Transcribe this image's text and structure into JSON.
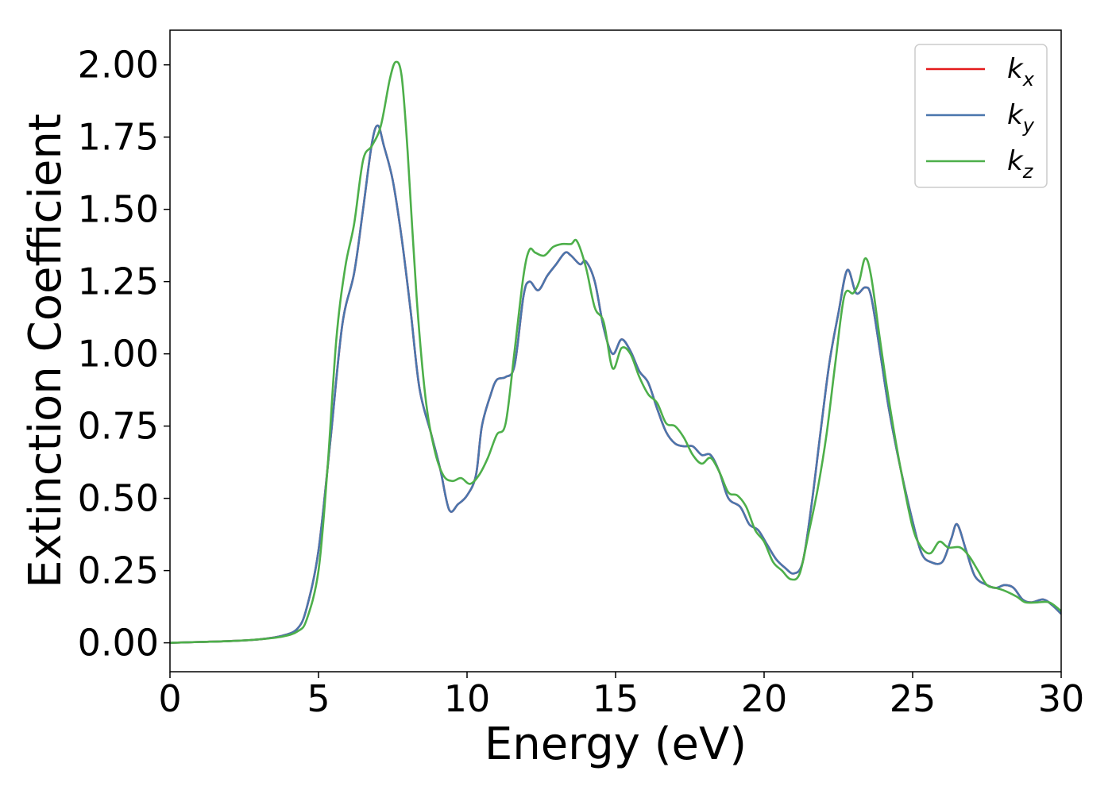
{
  "chart_data": {
    "type": "line",
    "xlabel": "Energy (eV)",
    "ylabel": "Extinction Coefficient",
    "xlim": [
      0,
      30
    ],
    "ylim": [
      -0.1,
      2.12
    ],
    "xticks": [
      "0",
      "5",
      "10",
      "15",
      "20",
      "25",
      "30"
    ],
    "yticks": [
      "0.00",
      "0.25",
      "0.50",
      "0.75",
      "1.00",
      "1.25",
      "1.50",
      "1.75",
      "2.00"
    ],
    "legend_position": "top-right",
    "grid": false,
    "series": [
      {
        "name": "k_x",
        "label_main": "k",
        "label_sub": "x",
        "color": "#e41a1c",
        "points": [
          [
            0,
            0.0
          ],
          [
            1,
            0.003
          ],
          [
            2,
            0.006
          ],
          [
            3,
            0.012
          ],
          [
            3.8,
            0.025
          ],
          [
            4.3,
            0.05
          ],
          [
            4.6,
            0.12
          ],
          [
            5,
            0.32
          ],
          [
            5.4,
            0.7
          ],
          [
            5.8,
            1.1
          ],
          [
            6.2,
            1.28
          ],
          [
            6.5,
            1.5
          ],
          [
            6.8,
            1.73
          ],
          [
            7.0,
            1.79
          ],
          [
            7.2,
            1.72
          ],
          [
            7.5,
            1.6
          ],
          [
            7.8,
            1.4
          ],
          [
            8.1,
            1.15
          ],
          [
            8.4,
            0.88
          ],
          [
            8.8,
            0.72
          ],
          [
            9.1,
            0.6
          ],
          [
            9.4,
            0.46
          ],
          [
            9.7,
            0.48
          ],
          [
            10.0,
            0.51
          ],
          [
            10.3,
            0.58
          ],
          [
            10.5,
            0.75
          ],
          [
            10.8,
            0.86
          ],
          [
            11.0,
            0.91
          ],
          [
            11.3,
            0.92
          ],
          [
            11.6,
            0.96
          ],
          [
            11.9,
            1.2
          ],
          [
            12.1,
            1.25
          ],
          [
            12.4,
            1.22
          ],
          [
            12.7,
            1.27
          ],
          [
            13.0,
            1.31
          ],
          [
            13.3,
            1.35
          ],
          [
            13.5,
            1.34
          ],
          [
            13.8,
            1.31
          ],
          [
            14.0,
            1.32
          ],
          [
            14.3,
            1.25
          ],
          [
            14.6,
            1.09
          ],
          [
            14.9,
            1.0
          ],
          [
            15.2,
            1.05
          ],
          [
            15.5,
            1.01
          ],
          [
            15.8,
            0.94
          ],
          [
            16.1,
            0.9
          ],
          [
            16.4,
            0.81
          ],
          [
            16.7,
            0.73
          ],
          [
            17.0,
            0.69
          ],
          [
            17.3,
            0.68
          ],
          [
            17.6,
            0.68
          ],
          [
            17.9,
            0.65
          ],
          [
            18.2,
            0.65
          ],
          [
            18.5,
            0.59
          ],
          [
            18.8,
            0.5
          ],
          [
            19.2,
            0.47
          ],
          [
            19.5,
            0.41
          ],
          [
            19.8,
            0.39
          ],
          [
            20.1,
            0.34
          ],
          [
            20.4,
            0.29
          ],
          [
            20.7,
            0.26
          ],
          [
            21.0,
            0.24
          ],
          [
            21.3,
            0.28
          ],
          [
            21.6,
            0.48
          ],
          [
            21.9,
            0.73
          ],
          [
            22.2,
            0.97
          ],
          [
            22.5,
            1.14
          ],
          [
            22.8,
            1.29
          ],
          [
            23.1,
            1.21
          ],
          [
            23.4,
            1.23
          ],
          [
            23.6,
            1.2
          ],
          [
            23.9,
            1.01
          ],
          [
            24.2,
            0.81
          ],
          [
            24.6,
            0.6
          ],
          [
            25.0,
            0.42
          ],
          [
            25.3,
            0.31
          ],
          [
            25.6,
            0.28
          ],
          [
            26.0,
            0.28
          ],
          [
            26.3,
            0.36
          ],
          [
            26.5,
            0.41
          ],
          [
            26.8,
            0.32
          ],
          [
            27.1,
            0.23
          ],
          [
            27.5,
            0.2
          ],
          [
            27.8,
            0.19
          ],
          [
            28.1,
            0.2
          ],
          [
            28.4,
            0.19
          ],
          [
            28.7,
            0.15
          ],
          [
            29.0,
            0.14
          ],
          [
            29.4,
            0.15
          ],
          [
            29.7,
            0.13
          ],
          [
            30.0,
            0.1
          ]
        ]
      },
      {
        "name": "k_y",
        "label_main": "k",
        "label_sub": "y",
        "color": "#4a76ad",
        "points": [
          [
            0,
            0.0
          ],
          [
            1,
            0.003
          ],
          [
            2,
            0.006
          ],
          [
            3,
            0.012
          ],
          [
            3.8,
            0.025
          ],
          [
            4.3,
            0.05
          ],
          [
            4.6,
            0.12
          ],
          [
            5,
            0.32
          ],
          [
            5.4,
            0.7
          ],
          [
            5.8,
            1.1
          ],
          [
            6.2,
            1.28
          ],
          [
            6.5,
            1.5
          ],
          [
            6.8,
            1.73
          ],
          [
            7.0,
            1.79
          ],
          [
            7.2,
            1.72
          ],
          [
            7.5,
            1.6
          ],
          [
            7.8,
            1.4
          ],
          [
            8.1,
            1.15
          ],
          [
            8.4,
            0.88
          ],
          [
            8.8,
            0.72
          ],
          [
            9.1,
            0.6
          ],
          [
            9.4,
            0.46
          ],
          [
            9.7,
            0.48
          ],
          [
            10.0,
            0.51
          ],
          [
            10.3,
            0.58
          ],
          [
            10.5,
            0.75
          ],
          [
            10.8,
            0.86
          ],
          [
            11.0,
            0.91
          ],
          [
            11.3,
            0.92
          ],
          [
            11.6,
            0.96
          ],
          [
            11.9,
            1.2
          ],
          [
            12.1,
            1.25
          ],
          [
            12.4,
            1.22
          ],
          [
            12.7,
            1.27
          ],
          [
            13.0,
            1.31
          ],
          [
            13.3,
            1.35
          ],
          [
            13.5,
            1.34
          ],
          [
            13.8,
            1.31
          ],
          [
            14.0,
            1.32
          ],
          [
            14.3,
            1.25
          ],
          [
            14.6,
            1.09
          ],
          [
            14.9,
            1.0
          ],
          [
            15.2,
            1.05
          ],
          [
            15.5,
            1.01
          ],
          [
            15.8,
            0.94
          ],
          [
            16.1,
            0.9
          ],
          [
            16.4,
            0.81
          ],
          [
            16.7,
            0.73
          ],
          [
            17.0,
            0.69
          ],
          [
            17.3,
            0.68
          ],
          [
            17.6,
            0.68
          ],
          [
            17.9,
            0.65
          ],
          [
            18.2,
            0.65
          ],
          [
            18.5,
            0.59
          ],
          [
            18.8,
            0.5
          ],
          [
            19.2,
            0.47
          ],
          [
            19.5,
            0.41
          ],
          [
            19.8,
            0.39
          ],
          [
            20.1,
            0.34
          ],
          [
            20.4,
            0.29
          ],
          [
            20.7,
            0.26
          ],
          [
            21.0,
            0.24
          ],
          [
            21.3,
            0.28
          ],
          [
            21.6,
            0.48
          ],
          [
            21.9,
            0.73
          ],
          [
            22.2,
            0.97
          ],
          [
            22.5,
            1.14
          ],
          [
            22.8,
            1.29
          ],
          [
            23.1,
            1.21
          ],
          [
            23.4,
            1.23
          ],
          [
            23.6,
            1.2
          ],
          [
            23.9,
            1.01
          ],
          [
            24.2,
            0.81
          ],
          [
            24.6,
            0.6
          ],
          [
            25.0,
            0.42
          ],
          [
            25.3,
            0.31
          ],
          [
            25.6,
            0.28
          ],
          [
            26.0,
            0.28
          ],
          [
            26.3,
            0.36
          ],
          [
            26.5,
            0.41
          ],
          [
            26.8,
            0.32
          ],
          [
            27.1,
            0.23
          ],
          [
            27.5,
            0.2
          ],
          [
            27.8,
            0.19
          ],
          [
            28.1,
            0.2
          ],
          [
            28.4,
            0.19
          ],
          [
            28.7,
            0.15
          ],
          [
            29.0,
            0.14
          ],
          [
            29.4,
            0.15
          ],
          [
            29.7,
            0.13
          ],
          [
            30.0,
            0.1
          ]
        ]
      },
      {
        "name": "k_z",
        "label_main": "k",
        "label_sub": "z",
        "color": "#4daf4a",
        "points": [
          [
            0,
            0.0
          ],
          [
            1,
            0.003
          ],
          [
            2,
            0.006
          ],
          [
            3,
            0.012
          ],
          [
            3.8,
            0.022
          ],
          [
            4.3,
            0.04
          ],
          [
            4.6,
            0.08
          ],
          [
            5,
            0.25
          ],
          [
            5.3,
            0.6
          ],
          [
            5.6,
            1.05
          ],
          [
            5.9,
            1.3
          ],
          [
            6.2,
            1.45
          ],
          [
            6.5,
            1.67
          ],
          [
            6.8,
            1.72
          ],
          [
            7.1,
            1.79
          ],
          [
            7.4,
            1.95
          ],
          [
            7.6,
            2.01
          ],
          [
            7.8,
            1.96
          ],
          [
            8.0,
            1.7
          ],
          [
            8.3,
            1.2
          ],
          [
            8.6,
            0.85
          ],
          [
            8.9,
            0.67
          ],
          [
            9.2,
            0.58
          ],
          [
            9.5,
            0.56
          ],
          [
            9.8,
            0.57
          ],
          [
            10.1,
            0.55
          ],
          [
            10.4,
            0.58
          ],
          [
            10.7,
            0.64
          ],
          [
            11.0,
            0.72
          ],
          [
            11.3,
            0.76
          ],
          [
            11.6,
            1.01
          ],
          [
            11.9,
            1.27
          ],
          [
            12.1,
            1.36
          ],
          [
            12.3,
            1.35
          ],
          [
            12.6,
            1.34
          ],
          [
            12.9,
            1.37
          ],
          [
            13.2,
            1.38
          ],
          [
            13.5,
            1.38
          ],
          [
            13.7,
            1.39
          ],
          [
            14.0,
            1.3
          ],
          [
            14.3,
            1.16
          ],
          [
            14.6,
            1.11
          ],
          [
            14.9,
            0.95
          ],
          [
            15.2,
            1.02
          ],
          [
            15.5,
            1.0
          ],
          [
            15.8,
            0.92
          ],
          [
            16.1,
            0.86
          ],
          [
            16.4,
            0.83
          ],
          [
            16.7,
            0.76
          ],
          [
            17.0,
            0.75
          ],
          [
            17.3,
            0.71
          ],
          [
            17.6,
            0.65
          ],
          [
            17.9,
            0.62
          ],
          [
            18.2,
            0.64
          ],
          [
            18.5,
            0.59
          ],
          [
            18.8,
            0.52
          ],
          [
            19.1,
            0.51
          ],
          [
            19.4,
            0.47
          ],
          [
            19.7,
            0.39
          ],
          [
            20.0,
            0.35
          ],
          [
            20.3,
            0.28
          ],
          [
            20.6,
            0.25
          ],
          [
            20.9,
            0.22
          ],
          [
            21.2,
            0.24
          ],
          [
            21.5,
            0.38
          ],
          [
            21.8,
            0.53
          ],
          [
            22.1,
            0.72
          ],
          [
            22.4,
            0.97
          ],
          [
            22.7,
            1.2
          ],
          [
            23.0,
            1.21
          ],
          [
            23.2,
            1.25
          ],
          [
            23.4,
            1.33
          ],
          [
            23.6,
            1.27
          ],
          [
            23.9,
            1.05
          ],
          [
            24.2,
            0.84
          ],
          [
            24.6,
            0.6
          ],
          [
            25.0,
            0.4
          ],
          [
            25.3,
            0.33
          ],
          [
            25.6,
            0.31
          ],
          [
            25.9,
            0.35
          ],
          [
            26.2,
            0.33
          ],
          [
            26.6,
            0.33
          ],
          [
            26.9,
            0.3
          ],
          [
            27.2,
            0.25
          ],
          [
            27.5,
            0.2
          ],
          [
            27.8,
            0.19
          ],
          [
            28.1,
            0.18
          ],
          [
            28.5,
            0.16
          ],
          [
            28.8,
            0.14
          ],
          [
            29.2,
            0.14
          ],
          [
            29.6,
            0.14
          ],
          [
            30.0,
            0.11
          ]
        ]
      }
    ]
  }
}
